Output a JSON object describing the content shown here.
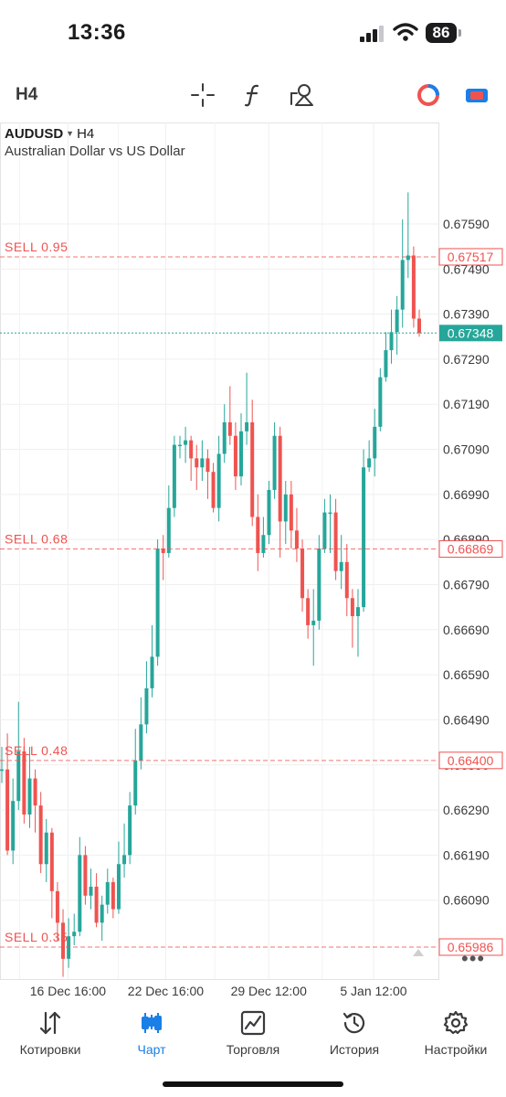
{
  "status_bar": {
    "time": "13:36",
    "battery": "86"
  },
  "toolbar": {
    "timeframe": "H4",
    "icons": [
      "crosshair-icon",
      "indicators-icon",
      "objects-icon",
      "trade-account-icon",
      "record-icon"
    ]
  },
  "chart_header": {
    "symbol": "AUDUSD",
    "timeframe": "H4",
    "description": "Australian Dollar vs US Dollar"
  },
  "colors": {
    "bull": "#26a69a",
    "bear": "#ef5350",
    "order_line": "#ef5350",
    "active_nav": "#1a7fe6"
  },
  "chart_data": {
    "type": "candlestick",
    "y_ticks": [
      "0.67590",
      "0.67490",
      "0.67390",
      "0.67290",
      "0.67190",
      "0.67090",
      "0.66990",
      "0.66890",
      "0.66790",
      "0.66690",
      "0.66590",
      "0.66490",
      "0.66390",
      "0.66290",
      "0.66190",
      "0.66090"
    ],
    "x_ticks": [
      "16 Dec 16:00",
      "22 Dec 16:00",
      "29 Dec 12:00",
      "5 Jan 12:00"
    ],
    "x_tick_positions": [
      0.155,
      0.378,
      0.613,
      0.852
    ],
    "ylim": [
      0.65915,
      0.67815
    ],
    "current_price": "0.67348",
    "order_lines": [
      {
        "label": "SELL 0.95",
        "price": "0.67517"
      },
      {
        "label": "SELL 0.68",
        "price": "0.66869"
      },
      {
        "label": "SELL 0.48",
        "price": "0.66400"
      },
      {
        "label": "SELL 0.35",
        "price": "0.65986"
      }
    ],
    "candles": [
      [
        0.6638,
        0.6638,
        0.6643,
        0.6635
      ],
      [
        0.6638,
        0.662,
        0.6646,
        0.6619
      ],
      [
        0.662,
        0.6631,
        0.6636,
        0.6617
      ],
      [
        0.6631,
        0.6642,
        0.6653,
        0.6629
      ],
      [
        0.6642,
        0.6628,
        0.6645,
        0.6626
      ],
      [
        0.6628,
        0.6636,
        0.6643,
        0.6625
      ],
      [
        0.6636,
        0.663,
        0.6638,
        0.6624
      ],
      [
        0.663,
        0.6617,
        0.6633,
        0.6615
      ],
      [
        0.6617,
        0.6624,
        0.6627,
        0.6613
      ],
      [
        0.6624,
        0.6611,
        0.6625,
        0.6605
      ],
      [
        0.6611,
        0.6604,
        0.6613,
        0.66
      ],
      [
        0.6604,
        0.6596,
        0.6607,
        0.6592
      ],
      [
        0.6596,
        0.6601,
        0.6605,
        0.6594
      ],
      [
        0.6601,
        0.6602,
        0.6606,
        0.6599
      ],
      [
        0.6602,
        0.6619,
        0.6623,
        0.6601
      ],
      [
        0.6619,
        0.661,
        0.6621,
        0.6608
      ],
      [
        0.661,
        0.6612,
        0.6616,
        0.6607
      ],
      [
        0.6612,
        0.6604,
        0.6615,
        0.6603
      ],
      [
        0.6604,
        0.6608,
        0.661,
        0.66
      ],
      [
        0.6608,
        0.6613,
        0.6616,
        0.6606
      ],
      [
        0.6613,
        0.6607,
        0.6614,
        0.6605
      ],
      [
        0.6607,
        0.6617,
        0.6622,
        0.6606
      ],
      [
        0.6617,
        0.6619,
        0.6626,
        0.6614
      ],
      [
        0.6619,
        0.663,
        0.6633,
        0.6617
      ],
      [
        0.663,
        0.664,
        0.6647,
        0.6628
      ],
      [
        0.664,
        0.6648,
        0.6654,
        0.6638
      ],
      [
        0.6648,
        0.6656,
        0.6662,
        0.6646
      ],
      [
        0.6656,
        0.6663,
        0.667,
        0.6654
      ],
      [
        0.6663,
        0.6687,
        0.6689,
        0.6661
      ],
      [
        0.6687,
        0.6686,
        0.669,
        0.668
      ],
      [
        0.6686,
        0.6696,
        0.6701,
        0.6685
      ],
      [
        0.6696,
        0.671,
        0.6712,
        0.6694
      ],
      [
        0.671,
        0.671,
        0.6712,
        0.6707
      ],
      [
        0.671,
        0.6711,
        0.6714,
        0.6706
      ],
      [
        0.6711,
        0.6707,
        0.6712,
        0.6702
      ],
      [
        0.6707,
        0.6705,
        0.671,
        0.67
      ],
      [
        0.6705,
        0.6707,
        0.6711,
        0.6702
      ],
      [
        0.6707,
        0.6704,
        0.6709,
        0.6698
      ],
      [
        0.6704,
        0.6696,
        0.6706,
        0.6695
      ],
      [
        0.6696,
        0.6708,
        0.6712,
        0.6693
      ],
      [
        0.6708,
        0.6715,
        0.6719,
        0.6706
      ],
      [
        0.6715,
        0.6712,
        0.6723,
        0.671
      ],
      [
        0.6712,
        0.6703,
        0.6715,
        0.67
      ],
      [
        0.6703,
        0.6713,
        0.6717,
        0.6701
      ],
      [
        0.6713,
        0.6715,
        0.6726,
        0.671
      ],
      [
        0.6715,
        0.6694,
        0.672,
        0.6692
      ],
      [
        0.6694,
        0.6686,
        0.6699,
        0.6682
      ],
      [
        0.6686,
        0.669,
        0.6694,
        0.6685
      ],
      [
        0.669,
        0.67,
        0.6702,
        0.6688
      ],
      [
        0.67,
        0.6712,
        0.6715,
        0.6698
      ],
      [
        0.6712,
        0.6693,
        0.6714,
        0.6685
      ],
      [
        0.6693,
        0.6699,
        0.6702,
        0.6688
      ],
      [
        0.6699,
        0.6691,
        0.6702,
        0.6687
      ],
      [
        0.6691,
        0.6687,
        0.6696,
        0.6684
      ],
      [
        0.6687,
        0.6676,
        0.6689,
        0.6673
      ],
      [
        0.6676,
        0.667,
        0.6678,
        0.6667
      ],
      [
        0.667,
        0.6671,
        0.6678,
        0.6661
      ],
      [
        0.6671,
        0.6687,
        0.669,
        0.6669
      ],
      [
        0.6687,
        0.6695,
        0.6698,
        0.6686
      ],
      [
        0.6695,
        0.6695,
        0.6699,
        0.6686
      ],
      [
        0.6695,
        0.6682,
        0.6698,
        0.668
      ],
      [
        0.6682,
        0.6684,
        0.669,
        0.6678
      ],
      [
        0.6684,
        0.6676,
        0.6688,
        0.6672
      ],
      [
        0.6676,
        0.6672,
        0.6678,
        0.6665
      ],
      [
        0.6672,
        0.6674,
        0.6678,
        0.6663
      ],
      [
        0.6674,
        0.6705,
        0.6709,
        0.6673
      ],
      [
        0.6705,
        0.6707,
        0.6711,
        0.6704
      ],
      [
        0.6707,
        0.6714,
        0.6718,
        0.6703
      ],
      [
        0.6714,
        0.6725,
        0.6727,
        0.6713
      ],
      [
        0.6725,
        0.6731,
        0.6735,
        0.6724
      ],
      [
        0.6731,
        0.6735,
        0.674,
        0.6728
      ],
      [
        0.6735,
        0.674,
        0.6743,
        0.673
      ],
      [
        0.674,
        0.6751,
        0.676,
        0.6736
      ],
      [
        0.6751,
        0.6752,
        0.6766,
        0.6747
      ],
      [
        0.6752,
        0.6738,
        0.6754,
        0.6736
      ],
      [
        0.6738,
        0.67348,
        0.674,
        0.6734
      ]
    ]
  },
  "nav": [
    {
      "label": "Котировки",
      "icon": "quotes-icon",
      "active": false
    },
    {
      "label": "Чарт",
      "icon": "chart-icon",
      "active": true
    },
    {
      "label": "Торговля",
      "icon": "trade-icon",
      "active": false
    },
    {
      "label": "История",
      "icon": "history-icon",
      "active": false
    },
    {
      "label": "Настройки",
      "icon": "settings-icon",
      "active": false
    }
  ]
}
